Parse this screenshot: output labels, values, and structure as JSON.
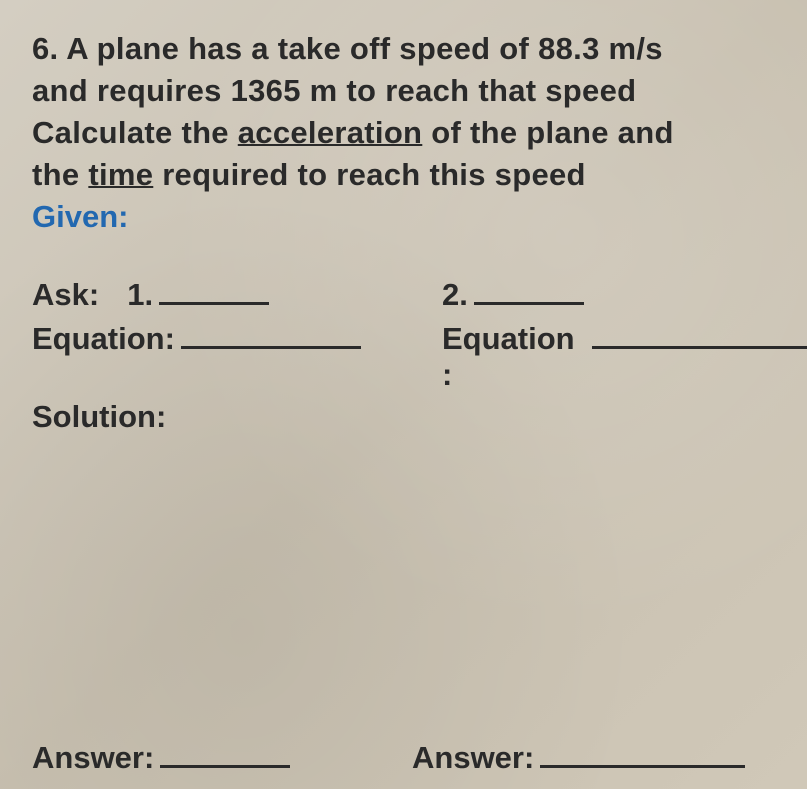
{
  "question": {
    "number": "6.",
    "line1": "A plane has a take off speed of 88.3 m/s",
    "line2": "and requires 1365 m to reach that speed",
    "line3_pre": "Calculate the ",
    "line3_underlined": "acceleration",
    "line3_post": " of the plane and",
    "line4_pre": "the ",
    "line4_underlined": "time",
    "line4_post": " required to reach this speed"
  },
  "labels": {
    "given": "Given:",
    "ask": "Ask:",
    "one": "1.",
    "two": "2.",
    "equation_left": "Equation:",
    "equation_right": "Equation :",
    "solution": "Solution:",
    "answer": "Answer:"
  },
  "colors": {
    "text": "#2a2a2a",
    "given": "#2268b0",
    "background": "#d0c8b8"
  },
  "typography": {
    "font_family": "Arial",
    "font_size_pt": 23,
    "font_weight": "bold"
  }
}
